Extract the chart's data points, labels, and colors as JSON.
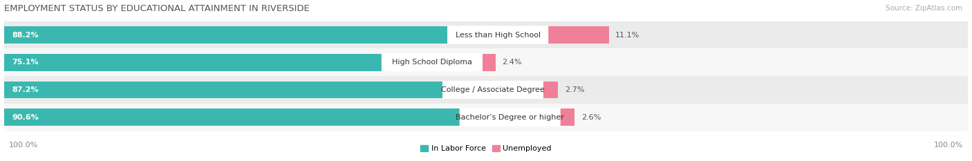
{
  "title": "EMPLOYMENT STATUS BY EDUCATIONAL ATTAINMENT IN RIVERSIDE",
  "source": "Source: ZipAtlas.com",
  "categories": [
    "Less than High School",
    "High School Diploma",
    "College / Associate Degree",
    "Bachelor’s Degree or higher"
  ],
  "in_labor_force": [
    88.2,
    75.1,
    87.2,
    90.6
  ],
  "unemployed": [
    11.1,
    2.4,
    2.7,
    2.6
  ],
  "labor_force_color": "#3ab8b0",
  "unemployed_color": "#f08098",
  "row_bg_colors": [
    "#ebebeb",
    "#f7f7f7",
    "#ebebeb",
    "#f7f7f7"
  ],
  "label_color_lf": "#ffffff",
  "label_color_un": "#555555",
  "axis_label_left": "100.0%",
  "axis_label_right": "100.0%",
  "legend_lf": "In Labor Force",
  "legend_un": "Unemployed",
  "title_fontsize": 9.5,
  "source_fontsize": 7.5,
  "bar_label_fontsize": 8,
  "cat_label_fontsize": 8,
  "axis_tick_fontsize": 8,
  "legend_fontsize": 8,
  "xlim_max": 115
}
